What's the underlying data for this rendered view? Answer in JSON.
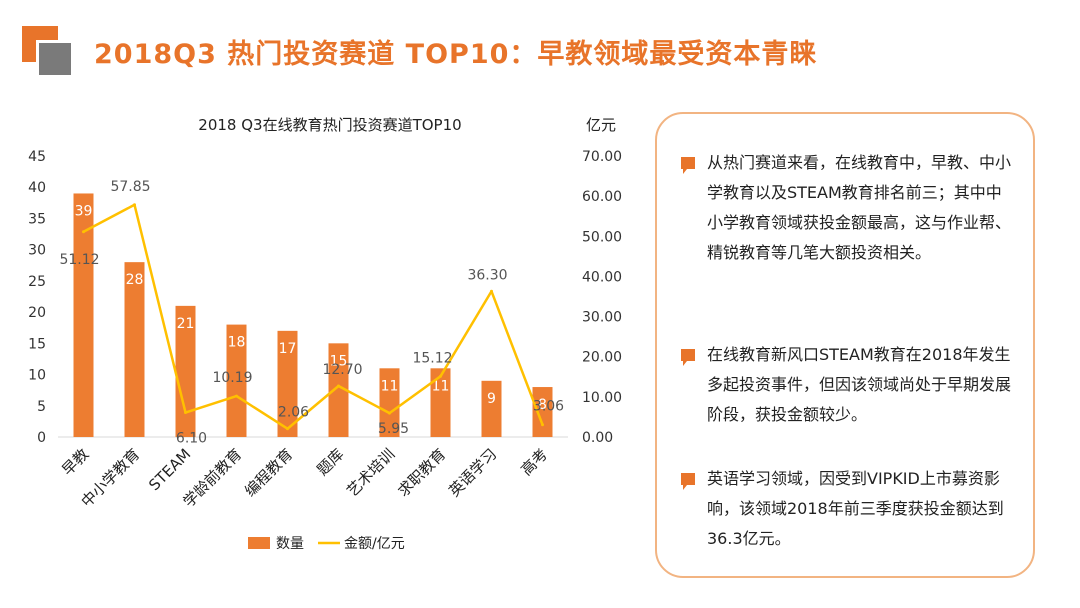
{
  "title": "2018Q3 热门投资赛道 TOP10：早教领域最受资本青睐",
  "colors": {
    "accent": "#e8742a",
    "line": "#ffc000",
    "bar": "#ed7d31",
    "gray": "#7a7a7a"
  },
  "chart_data": {
    "type": "bar+line",
    "title": "2018 Q3在线教育热门投资赛道TOP10",
    "y2_unit": "亿元",
    "categories": [
      "早教",
      "中小学教育",
      "STEAM",
      "学龄前教育",
      "编程教育",
      "题库",
      "艺术培训",
      "求职教育",
      "英语学习",
      "高考"
    ],
    "series": [
      {
        "name": "数量",
        "type": "bar",
        "axis": "left",
        "values": [
          39,
          28,
          21,
          18,
          17,
          15,
          11,
          11,
          9,
          8
        ],
        "labels": [
          "39",
          "28",
          "21",
          "18",
          "17",
          "15",
          "11",
          "11",
          "9",
          "8"
        ]
      },
      {
        "name": "金额/亿元",
        "type": "line",
        "axis": "right",
        "values": [
          51.12,
          57.85,
          6.1,
          10.19,
          2.06,
          12.7,
          5.95,
          15.12,
          36.3,
          3.06
        ],
        "labels": [
          "51.12",
          "57.85",
          "6.10",
          "10.19",
          "2.06",
          "12.70",
          "5.95",
          "15.12",
          "36.30",
          "3.06"
        ]
      }
    ],
    "y_left": {
      "min": 0,
      "max": 45,
      "ticks": [
        "0",
        "5",
        "10",
        "15",
        "20",
        "25",
        "30",
        "35",
        "40",
        "45"
      ]
    },
    "y_right": {
      "min": 0,
      "max": 70,
      "ticks": [
        "0.00",
        "10.00",
        "20.00",
        "30.00",
        "40.00",
        "50.00",
        "60.00",
        "70.00"
      ]
    },
    "legend": {
      "position": "bottom",
      "items": [
        "数量",
        "金额/亿元"
      ]
    },
    "grid": false
  },
  "notes": [
    "从热门赛道来看，在线教育中，早教、中小学教育以及STEAM教育排名前三；其中中小学教育领域获投金额最高，这与作业帮、精锐教育等几笔大额投资相关。",
    "在线教育新风口STEAM教育在2018年发生多起投资事件，但因该领域尚处于早期发展阶段，获投金额较少。",
    "英语学习领域，因受到VIPKID上市募资影响，该领域2018年前三季度获投金额达到36.3亿元。"
  ]
}
